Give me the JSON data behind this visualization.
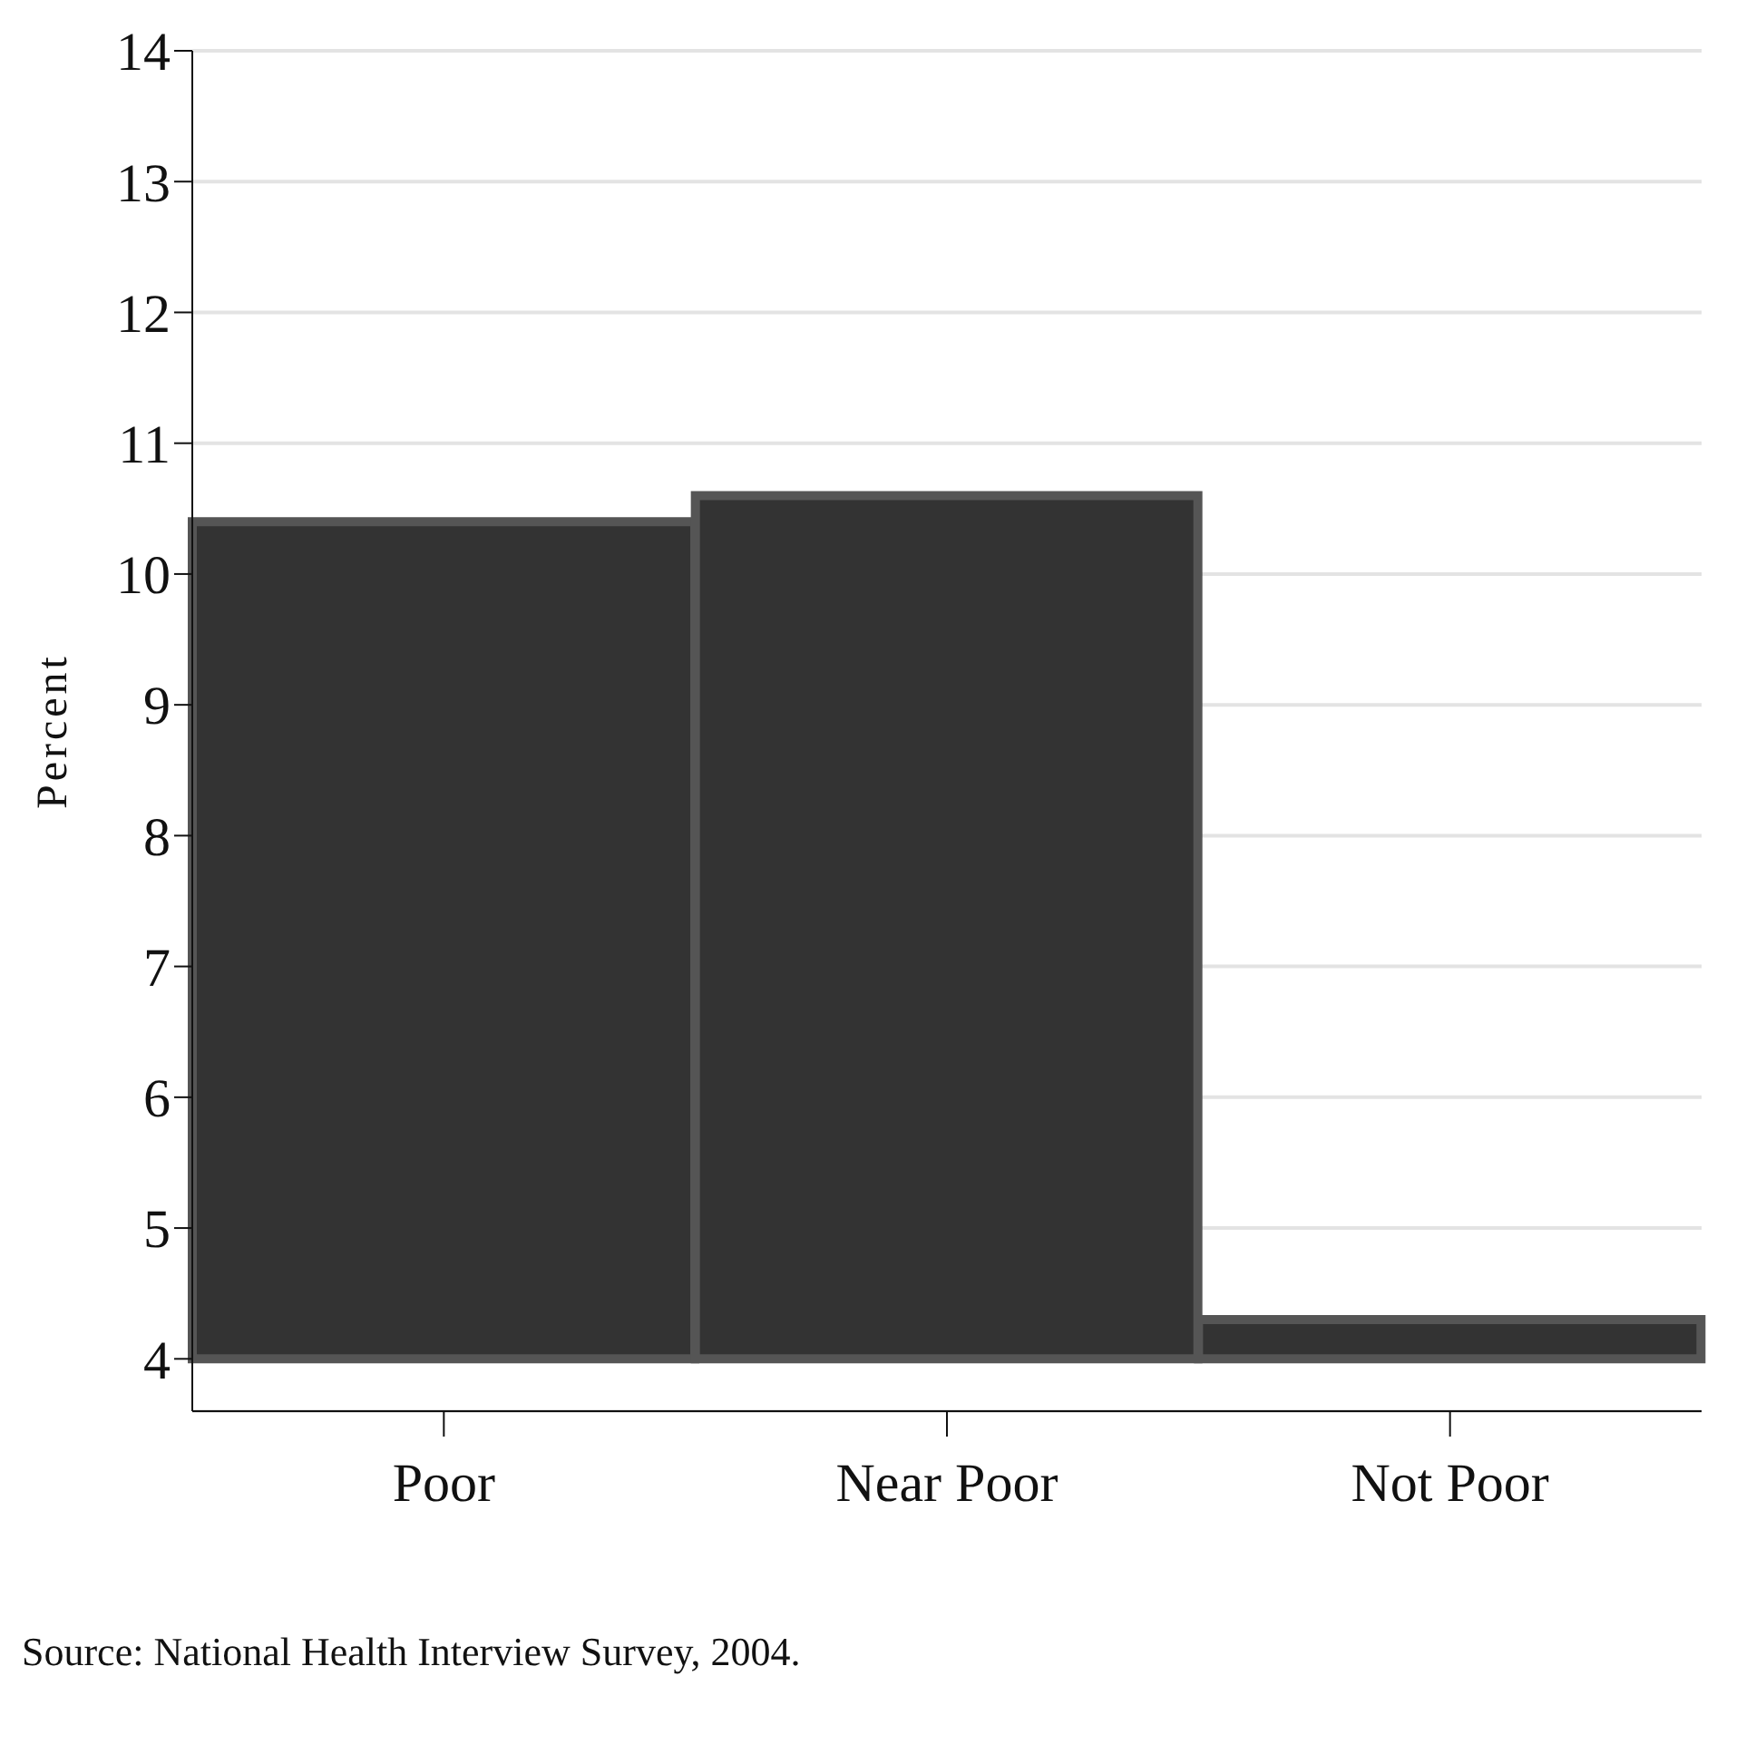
{
  "chart_data": {
    "type": "bar",
    "ylabel": "Percent",
    "categories": [
      "Poor",
      "Near Poor",
      "Not Poor"
    ],
    "base": [
      4,
      4,
      4
    ],
    "values": [
      6.4,
      6.6,
      0.3
    ],
    "color": "#333333",
    "ylim": [
      3.6,
      14
    ],
    "yticks": [
      4,
      5,
      6,
      7,
      8,
      9,
      10,
      11,
      12,
      13,
      14
    ],
    "grid": "y",
    "annotations": [
      "Source: National Health Interview Survey, 2004."
    ]
  }
}
